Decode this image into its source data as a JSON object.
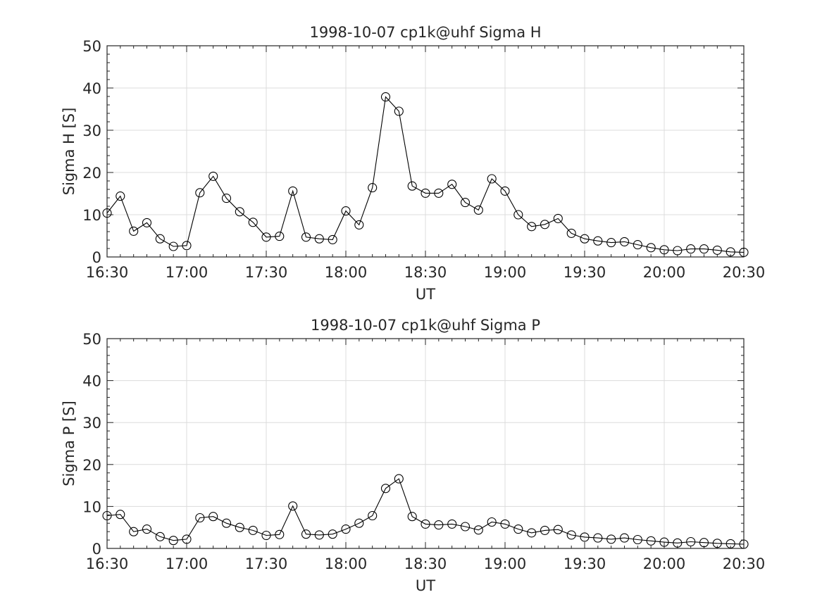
{
  "chart_data": [
    {
      "type": "line",
      "title": "1998-10-07  cp1k@uhf Sigma H",
      "xlabel": "UT",
      "ylabel": "Sigma H [S]",
      "ylim": [
        0,
        50
      ],
      "yticks": [
        0,
        10,
        20,
        30,
        40,
        50
      ],
      "xlim": [
        "16:30",
        "20:30"
      ],
      "xticks": [
        "16:30",
        "17:00",
        "17:30",
        "18:00",
        "18:30",
        "19:00",
        "19:30",
        "20:00",
        "20:30"
      ],
      "grid": true,
      "x": [
        "16:30",
        "16:35",
        "16:40",
        "16:45",
        "16:50",
        "16:55",
        "17:00",
        "17:05",
        "17:10",
        "17:15",
        "17:20",
        "17:25",
        "17:30",
        "17:35",
        "17:40",
        "17:45",
        "17:50",
        "17:55",
        "18:00",
        "18:05",
        "18:10",
        "18:15",
        "18:20",
        "18:25",
        "18:30",
        "18:35",
        "18:40",
        "18:45",
        "18:50",
        "18:55",
        "19:00",
        "19:05",
        "19:10",
        "19:15",
        "19:20",
        "19:25",
        "19:30",
        "19:35",
        "19:40",
        "19:45",
        "19:50",
        "19:55",
        "20:00",
        "20:05",
        "20:10",
        "20:15",
        "20:20",
        "20:25",
        "20:30"
      ],
      "series": [
        {
          "values": [
            10.4,
            14.4,
            6.1,
            8.1,
            4.3,
            2.5,
            2.7,
            15.2,
            19.1,
            13.9,
            10.7,
            8.2,
            4.7,
            4.9,
            15.6,
            4.7,
            4.3,
            4.1,
            10.9,
            7.6,
            16.4,
            37.9,
            34.5,
            16.8,
            15.1,
            15.1,
            17.2,
            12.9,
            11.1,
            18.5,
            15.6,
            10.0,
            7.2,
            7.7,
            9.1,
            5.6,
            4.3,
            3.8,
            3.4,
            3.6,
            2.9,
            2.2,
            1.7,
            1.5,
            1.9,
            1.9,
            1.6,
            1.2,
            1.1
          ]
        }
      ]
    },
    {
      "type": "line",
      "title": "1998-10-07  cp1k@uhf Sigma P",
      "xlabel": "UT",
      "ylabel": "Sigma P [S]",
      "ylim": [
        0,
        50
      ],
      "yticks": [
        0,
        10,
        20,
        30,
        40,
        50
      ],
      "xlim": [
        "16:30",
        "20:30"
      ],
      "xticks": [
        "16:30",
        "17:00",
        "17:30",
        "18:00",
        "18:30",
        "19:00",
        "19:30",
        "20:00",
        "20:30"
      ],
      "grid": true,
      "x": [
        "16:30",
        "16:35",
        "16:40",
        "16:45",
        "16:50",
        "16:55",
        "17:00",
        "17:05",
        "17:10",
        "17:15",
        "17:20",
        "17:25",
        "17:30",
        "17:35",
        "17:40",
        "17:45",
        "17:50",
        "17:55",
        "18:00",
        "18:05",
        "18:10",
        "18:15",
        "18:20",
        "18:25",
        "18:30",
        "18:35",
        "18:40",
        "18:45",
        "18:50",
        "18:55",
        "19:00",
        "19:05",
        "19:10",
        "19:15",
        "19:20",
        "19:25",
        "19:30",
        "19:35",
        "19:40",
        "19:45",
        "19:50",
        "19:55",
        "20:00",
        "20:05",
        "20:10",
        "20:15",
        "20:20",
        "20:25",
        "20:30"
      ],
      "series": [
        {
          "values": [
            7.8,
            8.1,
            4.0,
            4.6,
            2.8,
            1.9,
            2.2,
            7.3,
            7.6,
            6.0,
            5.0,
            4.3,
            3.1,
            3.3,
            10.1,
            3.4,
            3.2,
            3.4,
            4.6,
            6.0,
            7.8,
            14.3,
            16.6,
            7.6,
            5.8,
            5.6,
            5.8,
            5.2,
            4.4,
            6.3,
            5.8,
            4.6,
            3.7,
            4.3,
            4.5,
            3.2,
            2.7,
            2.5,
            2.2,
            2.5,
            2.1,
            1.8,
            1.5,
            1.3,
            1.6,
            1.4,
            1.2,
            1.1,
            1.0
          ]
        }
      ]
    }
  ]
}
